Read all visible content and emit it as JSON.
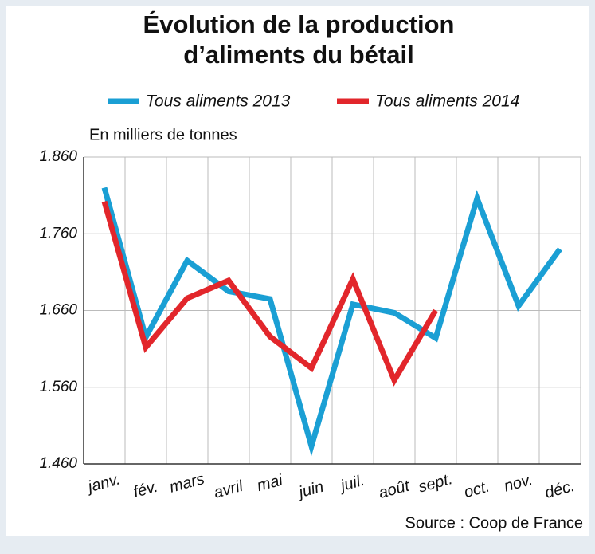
{
  "chart_data": {
    "type": "line",
    "title": "Évolution de la production d’aliments du bétail",
    "y_label": "En milliers de tonnes",
    "source": "Source : Coop de France",
    "categories": [
      "janv.",
      "fév.",
      "mars",
      "avril",
      "mai",
      "juin",
      "juil.",
      "août",
      "sept.",
      "oct.",
      "nov.",
      "déc."
    ],
    "series": [
      {
        "name": "Tous aliments 2013",
        "color": "#1a9fd4",
        "values": [
          1820,
          1625,
          1725,
          1685,
          1675,
          1483,
          1668,
          1657,
          1624,
          1806,
          1666,
          1740
        ]
      },
      {
        "name": "Tous aliments 2014",
        "color": "#e2262b",
        "values": [
          1802,
          1612,
          1676,
          1699,
          1626,
          1585,
          1701,
          1569,
          1660,
          null,
          null,
          null
        ]
      }
    ],
    "ylim": [
      1460,
      1860
    ],
    "yticks": [
      {
        "value": 1460,
        "label": "1.460"
      },
      {
        "value": 1560,
        "label": "1.560"
      },
      {
        "value": 1660,
        "label": "1.660"
      },
      {
        "value": 1760,
        "label": "1.760"
      },
      {
        "value": 1860,
        "label": "1.860"
      }
    ],
    "grid": true
  }
}
